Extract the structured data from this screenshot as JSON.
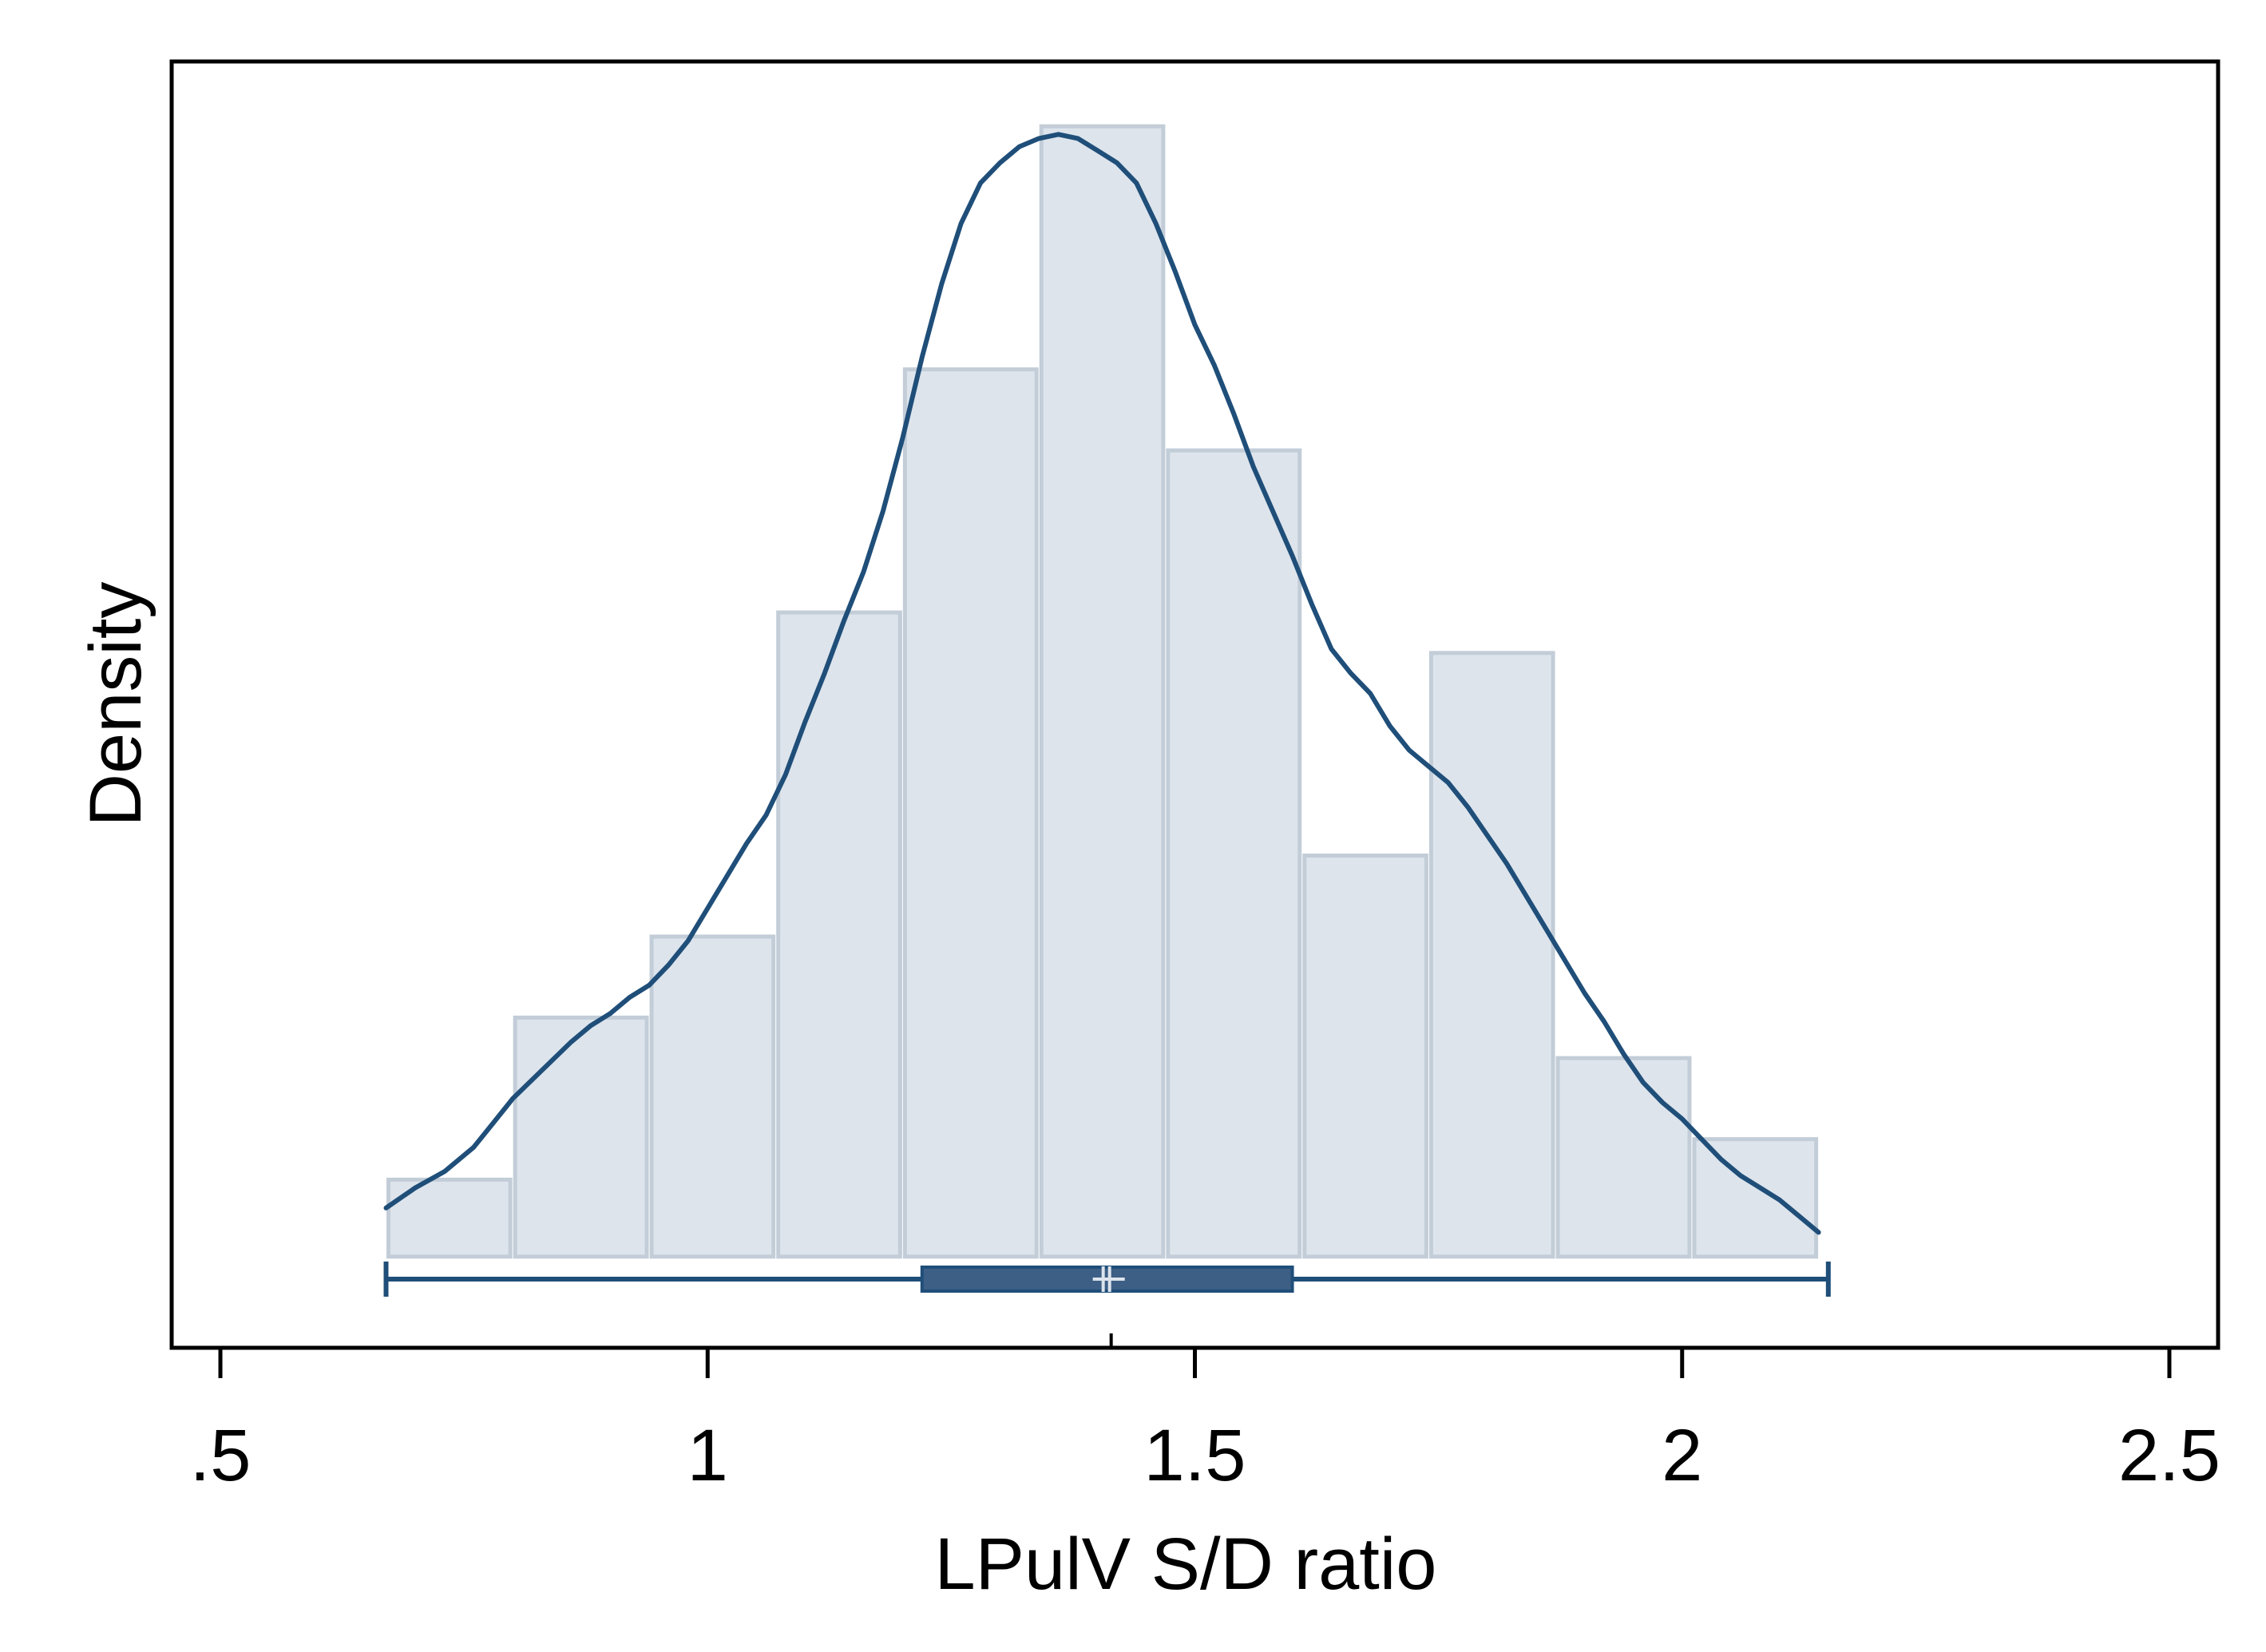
{
  "chart_data": {
    "type": "histogram",
    "title": "",
    "xlabel": "LPulV S/D ratio",
    "ylabel": "Density",
    "xlim": [
      0.45,
      2.55
    ],
    "ylim": [
      -0.225,
      2.95
    ],
    "x_ticks": [
      0.5,
      1,
      1.5,
      2,
      2.5
    ],
    "x_tick_labels": [
      ".5",
      "1",
      "1.5",
      "2",
      "2.5"
    ],
    "y_ticks_shown": false,
    "grid": false,
    "legend": "none",
    "histogram": {
      "bins": [
        {
          "start": 0.67,
          "end": 0.8,
          "density": 0.19
        },
        {
          "start": 0.8,
          "end": 0.94,
          "density": 0.59
        },
        {
          "start": 0.94,
          "end": 1.07,
          "density": 0.79
        },
        {
          "start": 1.07,
          "end": 1.2,
          "density": 1.59
        },
        {
          "start": 1.2,
          "end": 1.34,
          "density": 2.19
        },
        {
          "start": 1.34,
          "end": 1.47,
          "density": 2.79
        },
        {
          "start": 1.47,
          "end": 1.61,
          "density": 1.99
        },
        {
          "start": 1.61,
          "end": 1.74,
          "density": 0.99
        },
        {
          "start": 1.74,
          "end": 1.87,
          "density": 1.49
        },
        {
          "start": 1.87,
          "end": 2.01,
          "density": 0.49
        },
        {
          "start": 2.01,
          "end": 2.14,
          "density": 0.29
        }
      ]
    },
    "kde": {
      "x": [
        0.67,
        0.7,
        0.73,
        0.76,
        0.78,
        0.8,
        0.83,
        0.86,
        0.88,
        0.9,
        0.92,
        0.94,
        0.96,
        0.98,
        1.0,
        1.02,
        1.04,
        1.06,
        1.08,
        1.1,
        1.12,
        1.14,
        1.16,
        1.18,
        1.2,
        1.22,
        1.24,
        1.26,
        1.28,
        1.3,
        1.32,
        1.34,
        1.36,
        1.38,
        1.4,
        1.42,
        1.44,
        1.46,
        1.48,
        1.5,
        1.52,
        1.54,
        1.56,
        1.58,
        1.6,
        1.62,
        1.64,
        1.66,
        1.68,
        1.7,
        1.72,
        1.74,
        1.76,
        1.78,
        1.8,
        1.82,
        1.84,
        1.86,
        1.88,
        1.9,
        1.92,
        1.94,
        1.96,
        1.98,
        2.0,
        2.02,
        2.04,
        2.06,
        2.08,
        2.1,
        2.12,
        2.14
      ],
      "y": [
        0.12,
        0.17,
        0.21,
        0.27,
        0.33,
        0.39,
        0.46,
        0.53,
        0.57,
        0.6,
        0.64,
        0.67,
        0.72,
        0.78,
        0.86,
        0.94,
        1.02,
        1.09,
        1.19,
        1.32,
        1.44,
        1.57,
        1.69,
        1.84,
        2.02,
        2.22,
        2.4,
        2.55,
        2.65,
        2.7,
        2.74,
        2.76,
        2.77,
        2.76,
        2.73,
        2.7,
        2.65,
        2.55,
        2.43,
        2.3,
        2.2,
        2.08,
        1.95,
        1.84,
        1.73,
        1.61,
        1.5,
        1.44,
        1.39,
        1.31,
        1.25,
        1.21,
        1.17,
        1.11,
        1.04,
        0.97,
        0.89,
        0.81,
        0.73,
        0.65,
        0.58,
        0.5,
        0.43,
        0.38,
        0.34,
        0.29,
        0.24,
        0.2,
        0.17,
        0.14,
        0.1,
        0.06
      ]
    },
    "boxplot": {
      "min": 0.67,
      "q1": 1.22,
      "median": 1.41,
      "mean": 1.41,
      "q3": 1.6,
      "max": 2.15
    },
    "colors": {
      "bar_fill": "#dde4ec",
      "bar_stroke": "#c2cdd8",
      "line": "#1f4e79",
      "box_fill": "#3d5f85",
      "marker": "#dde4ec"
    }
  }
}
